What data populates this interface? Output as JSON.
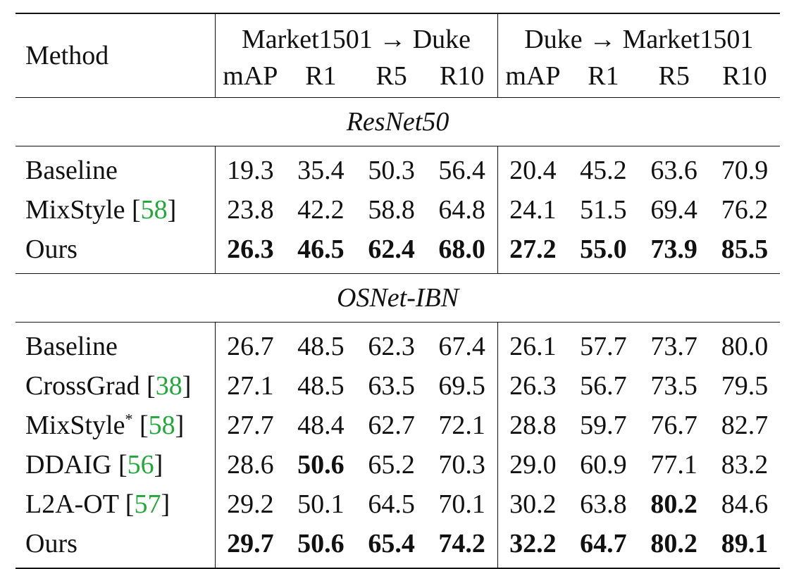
{
  "table": {
    "header": {
      "method": "Method",
      "group_left": "Market1501 → Duke",
      "group_right": "Duke → Market1501",
      "metrics": [
        "mAP",
        "R1",
        "R5",
        "R10",
        "mAP",
        "R1",
        "R5",
        "R10"
      ]
    },
    "sections": [
      {
        "title": "ResNet50",
        "rows": [
          {
            "method": "Baseline",
            "cite": "",
            "values": [
              "19.3",
              "35.4",
              "50.3",
              "56.4",
              "20.4",
              "45.2",
              "63.6",
              "70.9"
            ],
            "bold": []
          },
          {
            "method": "MixStyle",
            "cite": "58",
            "values": [
              "23.8",
              "42.2",
              "58.8",
              "64.8",
              "24.1",
              "51.5",
              "69.4",
              "76.2"
            ],
            "bold": []
          },
          {
            "method": "Ours",
            "cite": "",
            "values": [
              "26.3",
              "46.5",
              "62.4",
              "68.0",
              "27.2",
              "55.0",
              "73.9",
              "85.5"
            ],
            "bold": [
              0,
              1,
              2,
              3,
              4,
              5,
              6,
              7
            ]
          }
        ]
      },
      {
        "title": "OSNet-IBN",
        "rows": [
          {
            "method": "Baseline",
            "cite": "",
            "values": [
              "26.7",
              "48.5",
              "62.3",
              "67.4",
              "26.1",
              "57.7",
              "73.7",
              "80.0"
            ],
            "bold": []
          },
          {
            "method": "CrossGrad",
            "cite": "38",
            "values": [
              "27.1",
              "48.5",
              "63.5",
              "69.5",
              "26.3",
              "56.7",
              "73.5",
              "79.5"
            ],
            "bold": []
          },
          {
            "method": "MixStyle",
            "sup": "*",
            "cite": "58",
            "values": [
              "27.7",
              "48.4",
              "62.7",
              "72.1",
              "28.8",
              "59.7",
              "76.7",
              "82.7"
            ],
            "bold": []
          },
          {
            "method": "DDAIG",
            "cite": "56",
            "values": [
              "28.6",
              "50.6",
              "65.2",
              "70.3",
              "29.0",
              "60.9",
              "77.1",
              "83.2"
            ],
            "bold": [
              1
            ]
          },
          {
            "method": "L2A-OT",
            "cite": "57",
            "values": [
              "29.2",
              "50.1",
              "64.5",
              "70.1",
              "30.2",
              "63.8",
              "80.2",
              "84.6"
            ],
            "bold": [
              6
            ]
          },
          {
            "method": "Ours",
            "cite": "",
            "values": [
              "29.7",
              "50.6",
              "65.4",
              "74.2",
              "32.2",
              "64.7",
              "80.2",
              "89.1"
            ],
            "bold": [
              0,
              1,
              2,
              3,
              4,
              5,
              6,
              7
            ]
          }
        ]
      }
    ]
  }
}
